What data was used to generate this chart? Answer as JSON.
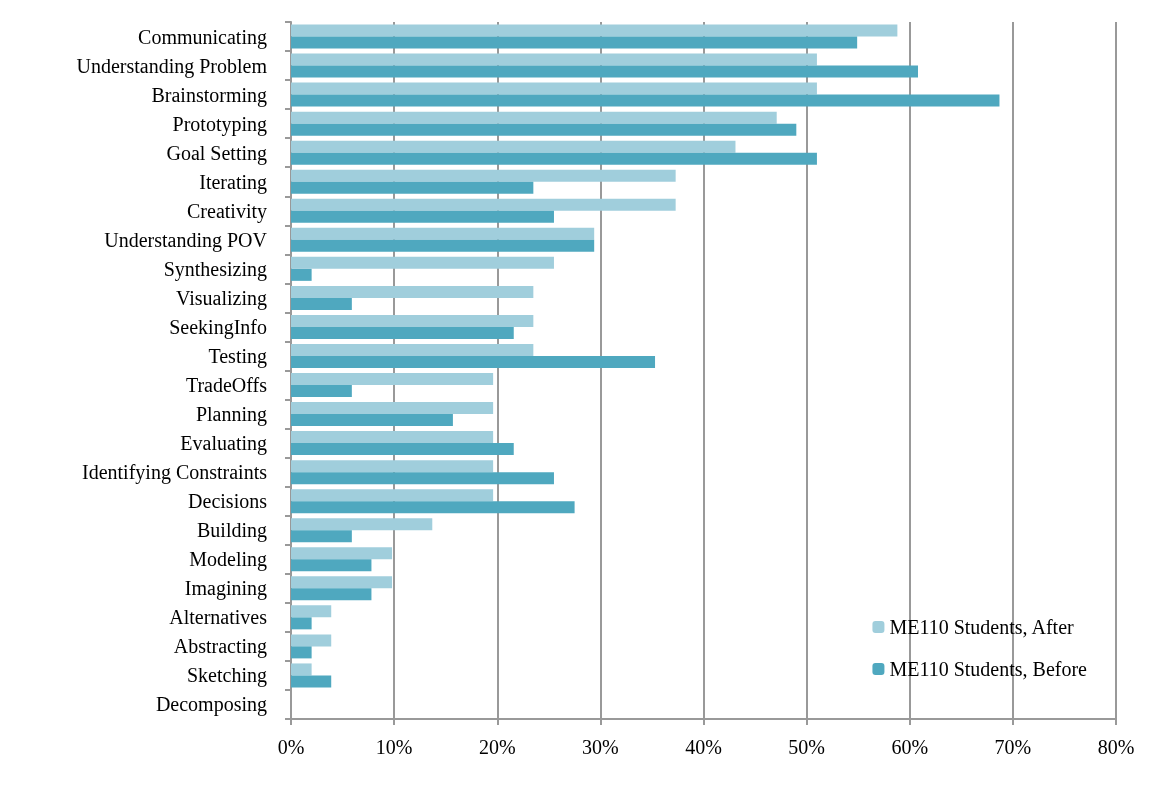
{
  "chart_data": {
    "type": "bar",
    "orientation": "horizontal",
    "categories": [
      "Communicating",
      "Understanding Problem",
      "Brainstorming",
      "Prototyping",
      "Goal Setting",
      "Iterating",
      "Creativity",
      "Understanding POV",
      "Synthesizing",
      "Visualizing",
      "SeekingInfo",
      "Testing",
      "TradeOffs",
      "Planning",
      "Evaluating",
      "Identifying Constraints",
      "Decisions",
      "Building",
      "Modeling",
      "Imagining",
      "Alternatives",
      "Abstracting",
      "Sketching",
      "Decomposing"
    ],
    "series": [
      {
        "name": "ME110 Students, After",
        "color": "#a0cedc",
        "values": [
          58.8,
          51.0,
          51.0,
          47.1,
          43.1,
          37.3,
          37.3,
          29.4,
          25.5,
          23.5,
          23.5,
          23.5,
          19.6,
          19.6,
          19.6,
          19.6,
          19.6,
          13.7,
          9.8,
          9.8,
          3.9,
          3.9,
          2.0,
          0
        ]
      },
      {
        "name": "ME110 Students, Before",
        "color": "#4fa8bf",
        "values": [
          54.9,
          60.8,
          68.7,
          49.0,
          51.0,
          23.5,
          25.5,
          29.4,
          2.0,
          5.9,
          21.6,
          35.3,
          5.9,
          15.7,
          21.6,
          25.5,
          27.5,
          5.9,
          7.8,
          7.8,
          2.0,
          2.0,
          3.9,
          0
        ]
      }
    ],
    "xlim": [
      0,
      80
    ],
    "xticks": [
      {
        "value": 0,
        "label": "0%"
      },
      {
        "value": 10,
        "label": "10%"
      },
      {
        "value": 20,
        "label": "20%"
      },
      {
        "value": 30,
        "label": "30%"
      },
      {
        "value": 40,
        "label": "40%"
      },
      {
        "value": 50,
        "label": "50%"
      },
      {
        "value": 60,
        "label": "60%"
      },
      {
        "value": 70,
        "label": "70%"
      },
      {
        "value": 80,
        "label": "80%"
      }
    ],
    "grid": "x",
    "legend": "bottom right"
  }
}
